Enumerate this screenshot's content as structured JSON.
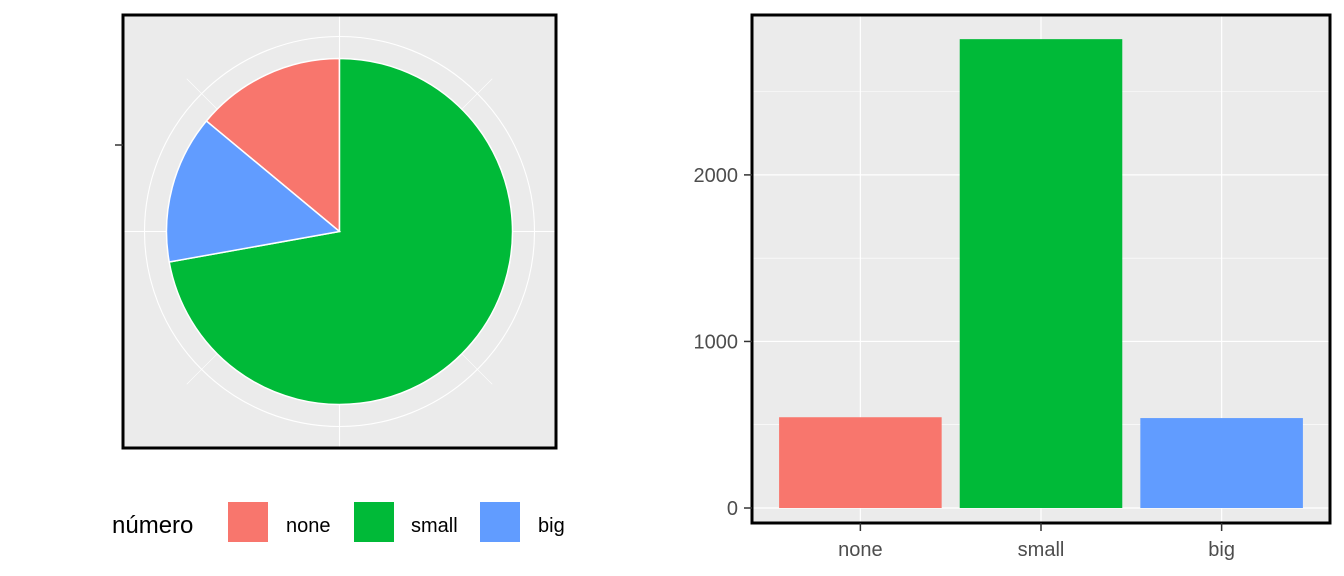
{
  "chart_data": [
    {
      "type": "pie",
      "categories": [
        "none",
        "small",
        "big"
      ],
      "values": [
        545,
        2815,
        540
      ],
      "colors": [
        "#F8766D",
        "#00BA38",
        "#619CFF"
      ],
      "grid": true,
      "legend": {
        "title": "número",
        "position": "bottom",
        "items": [
          "none",
          "small",
          "big"
        ]
      }
    },
    {
      "type": "bar",
      "categories": [
        "none",
        "small",
        "big"
      ],
      "values": [
        545,
        2815,
        540
      ],
      "colors": [
        "#F8766D",
        "#00BA38",
        "#619CFF"
      ],
      "ylim": [
        -90,
        2960
      ],
      "yticks": [
        0,
        1000,
        2000
      ],
      "ytick_labels": [
        "0",
        "1000",
        "2000"
      ],
      "grid": true
    }
  ]
}
